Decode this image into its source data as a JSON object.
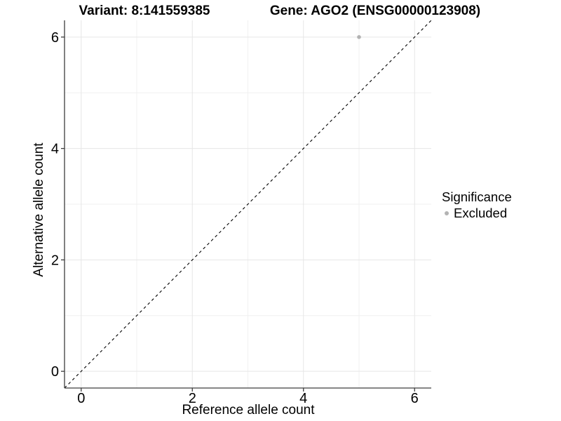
{
  "figure": {
    "title_left": "Variant: 8:141559385",
    "title_right": "Gene: AGO2 (ENSG00000123908)"
  },
  "chart_data": {
    "type": "scatter",
    "xlabel": "Reference allele count",
    "ylabel": "Alternative allele count",
    "xlim": [
      -0.3,
      6.3
    ],
    "ylim": [
      -0.3,
      6.3
    ],
    "x_ticks": [
      0,
      2,
      4,
      6
    ],
    "y_ticks": [
      0,
      2,
      4,
      6
    ],
    "x_minor_ticks": [
      1,
      3,
      5
    ],
    "y_minor_ticks": [
      1,
      3,
      5
    ],
    "grid": true,
    "series": [
      {
        "name": "Excluded",
        "color": "#b3b3b3",
        "points": [
          {
            "x": 5,
            "y": 6
          }
        ]
      }
    ],
    "reference_line": {
      "kind": "identity",
      "style": "dashed",
      "color": "#000000",
      "from": [
        -0.3,
        -0.3
      ],
      "to": [
        6.3,
        6.3
      ]
    },
    "legend": {
      "title": "Significance",
      "position": "right",
      "items": [
        {
          "label": "Excluded",
          "color": "#b3b3b3",
          "marker": "circle"
        }
      ]
    }
  },
  "colors": {
    "background": "#ffffff",
    "grid_major": "#e6e6e6",
    "grid_minor": "#f0f0f0",
    "axis_line": "#3d3d3d",
    "text": "#000000"
  }
}
